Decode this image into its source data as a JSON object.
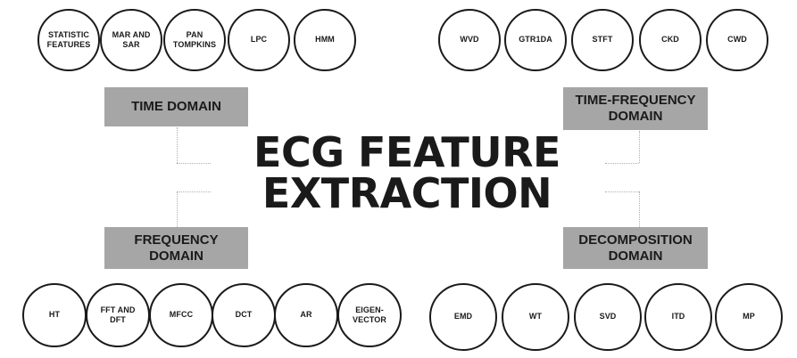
{
  "title": "ECG FEATURE\nEXTRACTION",
  "domains": {
    "time": "TIME DOMAIN",
    "time_frequency": "TIME-FREQUENCY\nDOMAIN",
    "frequency": "FREQUENCY\nDOMAIN",
    "decomposition": "DECOMPOSITION\nDOMAIN"
  },
  "time_methods": [
    "STATISTIC\nFEATURES",
    "MAR AND\nSAR",
    "PAN\nTOMPKINS",
    "LPC",
    "HMM"
  ],
  "time_frequency_methods": [
    "WVD",
    "GTR1DA",
    "STFT",
    "CKD",
    "CWD"
  ],
  "frequency_methods": [
    "HT",
    "FFT AND\nDFT",
    "MFCC",
    "DCT",
    "AR",
    "EIGEN-\nVECTOR"
  ],
  "decomposition_methods": [
    "EMD",
    "WT",
    "SVD",
    "ITD",
    "MP"
  ],
  "colors": {
    "box": "#a6a6a6",
    "text": "#1a1a1a",
    "connector": "#b0b0b0"
  }
}
